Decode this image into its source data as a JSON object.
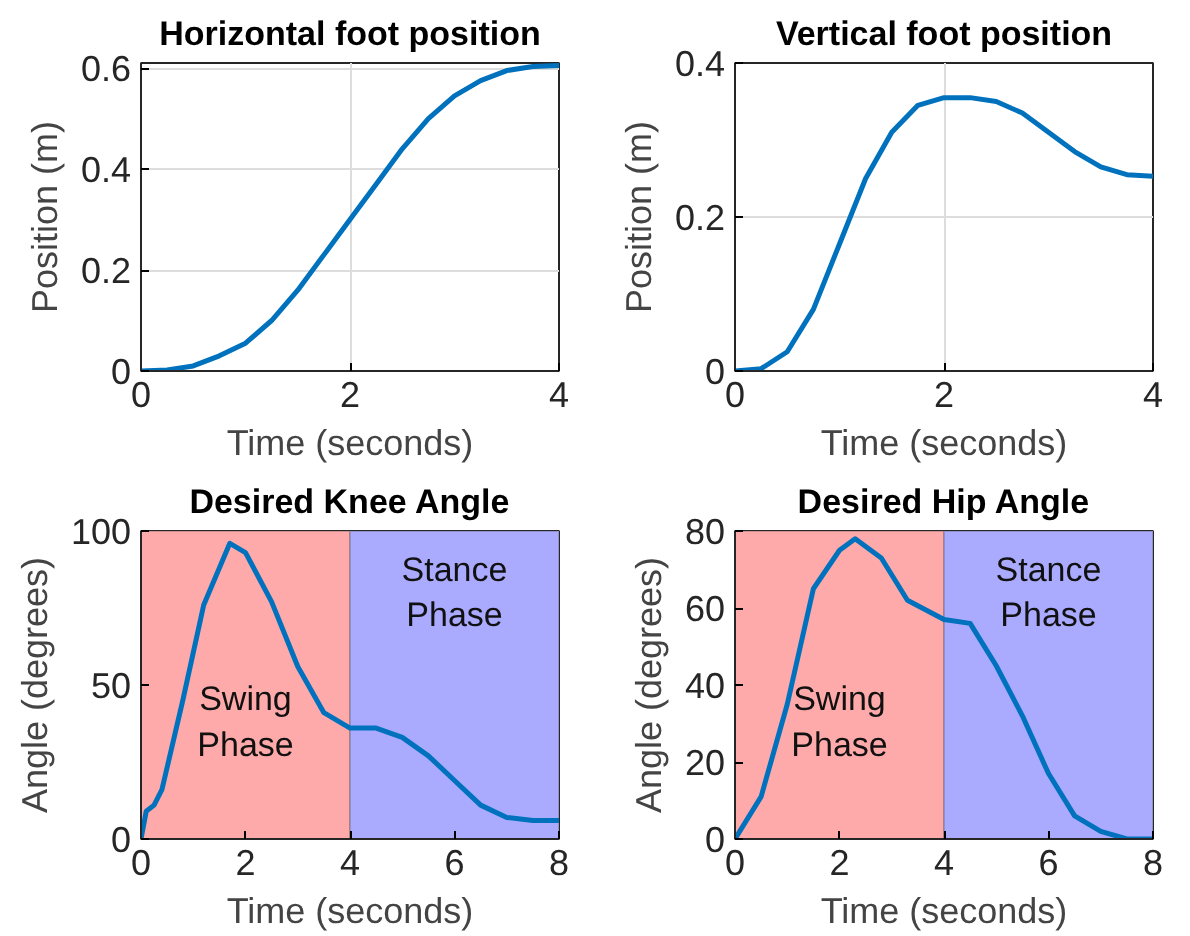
{
  "chart_data": [
    {
      "type": "line",
      "title": "Horizontal foot position",
      "xlabel": "Time (seconds)",
      "ylabel": "Position (m)",
      "color": "#0072bd",
      "xlim": [
        0,
        4
      ],
      "ylim": [
        0,
        0.61
      ],
      "xticks": [
        0,
        2,
        4
      ],
      "yticks": [
        0,
        0.2,
        0.4,
        0.6
      ],
      "grid": true,
      "x": [
        0,
        0.25,
        0.5,
        0.75,
        1,
        1.25,
        1.5,
        1.75,
        2,
        2.25,
        2.5,
        2.75,
        3,
        3.25,
        3.5,
        3.75,
        4
      ],
      "values": [
        0,
        0.002,
        0.01,
        0.03,
        0.055,
        0.1,
        0.16,
        0.23,
        0.3,
        0.37,
        0.44,
        0.5,
        0.545,
        0.575,
        0.595,
        0.603,
        0.605
      ]
    },
    {
      "type": "line",
      "title": "Vertical foot position",
      "xlabel": "Time (seconds)",
      "ylabel": "Position (m)",
      "color": "#0072bd",
      "xlim": [
        0,
        4
      ],
      "ylim": [
        0,
        0.4
      ],
      "xticks": [
        0,
        2,
        4
      ],
      "yticks": [
        0,
        0.2,
        0.4
      ],
      "grid": true,
      "x": [
        0,
        0.25,
        0.5,
        0.75,
        1,
        1.25,
        1.5,
        1.75,
        2,
        2.25,
        2.5,
        2.75,
        3,
        3.25,
        3.5,
        3.75,
        4
      ],
      "values": [
        0,
        0.003,
        0.025,
        0.08,
        0.165,
        0.25,
        0.31,
        0.345,
        0.355,
        0.355,
        0.35,
        0.335,
        0.31,
        0.285,
        0.265,
        0.255,
        0.253
      ]
    },
    {
      "type": "line",
      "title": "Desired Knee Angle",
      "xlabel": "Time (seconds)",
      "ylabel": "Angle (degrees)",
      "color": "#0072bd",
      "xlim": [
        0,
        8
      ],
      "ylim": [
        0,
        100
      ],
      "xticks": [
        0,
        2,
        4,
        6,
        8
      ],
      "yticks": [
        0,
        50,
        100
      ],
      "grid": false,
      "bands": [
        {
          "axis": "x",
          "from": 0,
          "to": 4,
          "color": "#ffaaaa",
          "label": "Swing Phase"
        },
        {
          "axis": "x",
          "from": 4,
          "to": 8,
          "color": "#aaaaff",
          "label": "Stance Phase"
        }
      ],
      "x": [
        0,
        0.1,
        0.25,
        0.4,
        0.8,
        1.2,
        1.7,
        2,
        2.5,
        3,
        3.5,
        4,
        4.5,
        5,
        5.5,
        6,
        6.5,
        7,
        7.5,
        8
      ],
      "values": [
        0,
        9,
        11,
        16,
        45,
        76,
        96,
        93,
        77,
        56,
        41,
        36,
        36,
        33,
        27,
        19,
        11,
        7,
        6,
        6
      ]
    },
    {
      "type": "line",
      "title": "Desired Hip Angle",
      "xlabel": "Time (seconds)",
      "ylabel": "Angle (degrees)",
      "color": "#0072bd",
      "xlim": [
        0,
        8
      ],
      "ylim": [
        0,
        80
      ],
      "xticks": [
        0,
        2,
        4,
        6,
        8
      ],
      "yticks": [
        0,
        20,
        40,
        60,
        80
      ],
      "grid": false,
      "bands": [
        {
          "axis": "x",
          "from": 0,
          "to": 4,
          "color": "#ffaaaa",
          "label": "Swing Phase"
        },
        {
          "axis": "x",
          "from": 4,
          "to": 8,
          "color": "#aaaaff",
          "label": "Stance Phase"
        }
      ],
      "x": [
        0,
        0.5,
        1,
        1.5,
        2,
        2.3,
        2.8,
        3.3,
        4,
        4.5,
        5,
        5.5,
        6,
        6.5,
        7,
        7.5,
        8
      ],
      "values": [
        0,
        11,
        35,
        65,
        75,
        78,
        73,
        62,
        57,
        56,
        45,
        32,
        17,
        6,
        2,
        0,
        0
      ]
    }
  ]
}
